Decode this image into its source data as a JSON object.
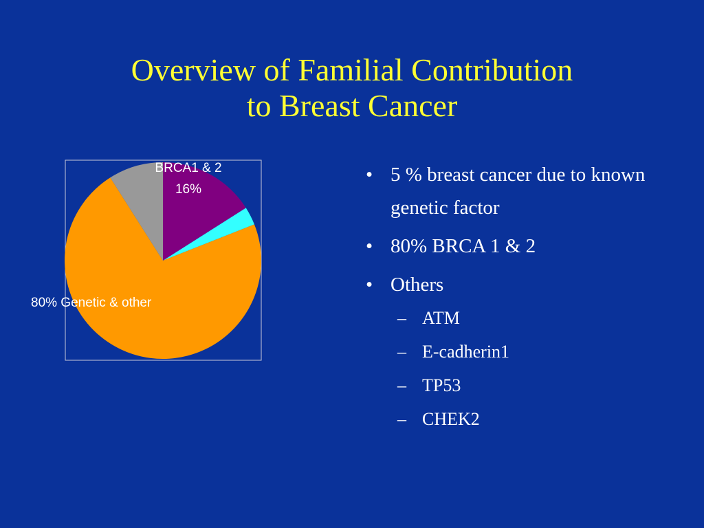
{
  "slide": {
    "title_line1": "Overview of Familial Contribution",
    "title_line2": "to Breast Cancer"
  },
  "bullets": [
    {
      "level": 1,
      "text": "5 %  breast cancer due to known genetic factor"
    },
    {
      "level": 1,
      "text": "80% BRCA 1 & 2"
    },
    {
      "level": 1,
      "text": "Others"
    },
    {
      "level": 2,
      "text": "ATM"
    },
    {
      "level": 2,
      "text": "E-cadherin1"
    },
    {
      "level": 2,
      "text": "TP53"
    },
    {
      "level": 2,
      "text": "CHEK2"
    }
  ],
  "colors": {
    "background": "#0a329a",
    "title": "#ffff33",
    "text": "#ffffff"
  },
  "chart_data": {
    "type": "pie",
    "title": "",
    "slices": [
      {
        "value": 16,
        "color": "#800080"
      },
      {
        "value": 3,
        "color": "#33ffff"
      },
      {
        "value": 72,
        "color": "#ff9900"
      },
      {
        "value": 9,
        "color": "#999999"
      }
    ],
    "labels": [
      {
        "line1": "BRCA1 & 2",
        "line2": "16%"
      },
      {
        "line1": "80% Genetic & other",
        "line2": ""
      }
    ],
    "start_angle": "12 o'clock",
    "direction": "clockwise",
    "plot_border": true
  }
}
